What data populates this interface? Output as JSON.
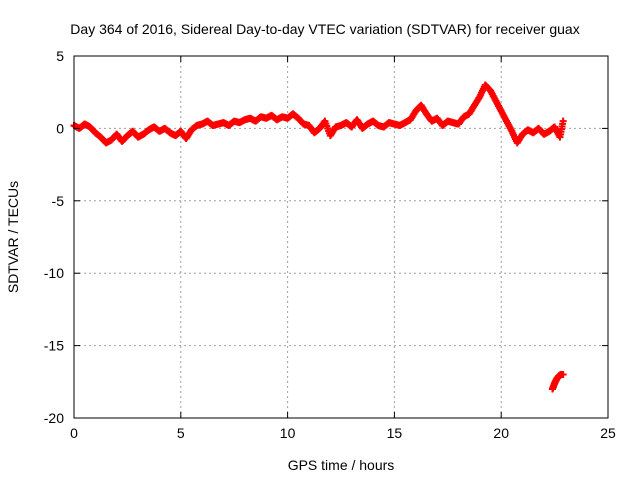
{
  "chart_data": {
    "type": "scatter",
    "title": "Day 364 of 2016, Sidereal Day-to-day VTEC variation (SDTVAR) for receiver guax",
    "xlabel": "GPS time / hours",
    "ylabel": "SDTVAR / TECUs",
    "xlim": [
      0,
      25
    ],
    "ylim": [
      -20,
      5
    ],
    "xticks": [
      0,
      5,
      10,
      15,
      20,
      25
    ],
    "yticks": [
      5,
      0,
      -5,
      -10,
      -15,
      -20
    ],
    "grid": true,
    "marker": "+",
    "series": [
      {
        "name": "SDTVAR",
        "color": "#ff0000",
        "x": [
          0.0,
          0.25,
          0.5,
          0.75,
          1.0,
          1.25,
          1.5,
          1.75,
          2.0,
          2.25,
          2.5,
          2.75,
          3.0,
          3.25,
          3.5,
          3.75,
          4.0,
          4.25,
          4.5,
          4.75,
          5.0,
          5.25,
          5.5,
          5.75,
          6.0,
          6.25,
          6.5,
          6.75,
          7.0,
          7.25,
          7.5,
          7.75,
          8.0,
          8.25,
          8.5,
          8.75,
          9.0,
          9.25,
          9.5,
          9.75,
          10.0,
          10.25,
          10.5,
          10.75,
          11.0,
          11.25,
          11.5,
          11.75,
          12.0,
          12.25,
          12.5,
          12.75,
          13.0,
          13.25,
          13.5,
          13.75,
          14.0,
          14.25,
          14.5,
          14.75,
          15.0,
          15.25,
          15.5,
          15.75,
          16.0,
          16.25,
          16.5,
          16.75,
          17.0,
          17.25,
          17.5,
          17.75,
          18.0,
          18.25,
          18.5,
          18.75,
          19.0,
          19.25,
          19.5,
          19.75,
          20.0,
          20.25,
          20.5,
          20.75,
          21.0,
          21.25,
          21.5,
          21.75,
          22.0,
          22.25,
          22.5,
          22.75,
          22.9,
          22.4,
          22.5,
          22.6,
          22.7,
          22.8,
          22.9
        ],
        "y": [
          0.2,
          0.0,
          0.3,
          0.1,
          -0.3,
          -0.6,
          -1.0,
          -0.8,
          -0.4,
          -0.9,
          -0.5,
          -0.2,
          -0.6,
          -0.4,
          -0.1,
          0.1,
          -0.2,
          0.0,
          -0.3,
          -0.5,
          -0.2,
          -0.7,
          -0.1,
          0.2,
          0.3,
          0.5,
          0.2,
          0.3,
          0.4,
          0.2,
          0.5,
          0.4,
          0.6,
          0.7,
          0.5,
          0.8,
          0.7,
          0.9,
          0.6,
          0.8,
          0.7,
          1.0,
          0.7,
          0.3,
          0.2,
          -0.3,
          0.0,
          0.5,
          -0.5,
          0.1,
          0.2,
          0.4,
          0.1,
          0.6,
          0.0,
          0.3,
          0.5,
          0.2,
          0.1,
          0.4,
          0.3,
          0.2,
          0.4,
          0.6,
          1.2,
          1.6,
          1.0,
          0.5,
          0.7,
          0.2,
          0.5,
          0.4,
          0.3,
          0.8,
          1.0,
          1.6,
          2.2,
          3.0,
          2.6,
          1.9,
          1.2,
          0.5,
          -0.2,
          -1.0,
          -0.4,
          -0.1,
          -0.3,
          0.0,
          -0.4,
          -0.2,
          0.1,
          -0.6,
          0.5,
          -18.0,
          -17.6,
          -17.3,
          -17.1,
          -17.0,
          -17.0
        ]
      }
    ]
  }
}
